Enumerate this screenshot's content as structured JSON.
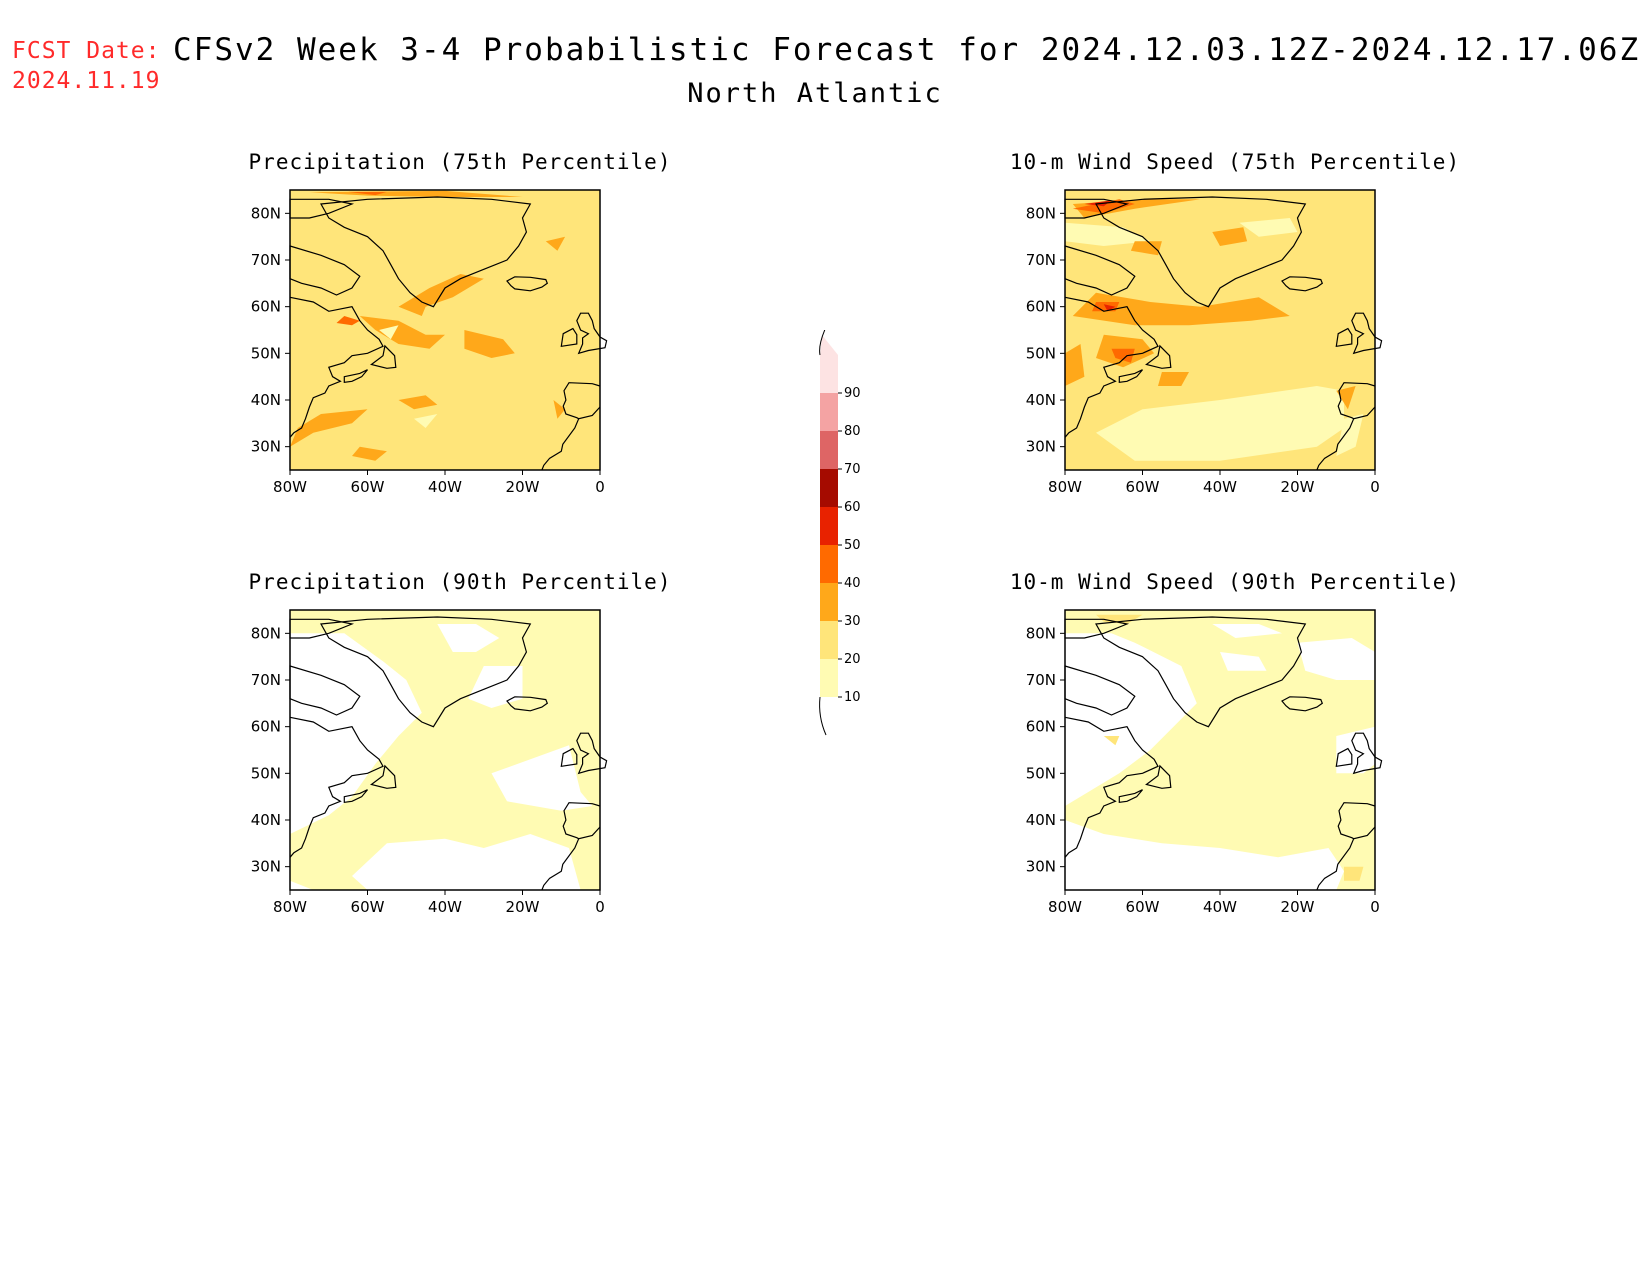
{
  "header": {
    "fcst_label": "FCST Date:",
    "fcst_date": "2024.11.19",
    "title": "CFSv2 Week 3-4 Probabilistic Forecast for 2024.12.03.12Z-2024.12.17.06Z",
    "region": "North Atlantic"
  },
  "axes": {
    "lat_ticks": [
      "80N",
      "70N",
      "60N",
      "50N",
      "40N",
      "30N"
    ],
    "lon_ticks": [
      "80W",
      "60W",
      "40W",
      "20W",
      "0"
    ]
  },
  "colorbar": {
    "levels": [
      "10",
      "20",
      "30",
      "40",
      "50",
      "60",
      "70",
      "80",
      "90"
    ],
    "colors": [
      "#fffbb3",
      "#ffe57a",
      "#ffa81a",
      "#ff6a00",
      "#e82200",
      "#a50b00",
      "#de6565",
      "#f4a3a3",
      "#fde3e3"
    ]
  },
  "panels": [
    {
      "title": "Precipitation (75th Percentile)",
      "base_level": "20-30",
      "variant": "precip75"
    },
    {
      "title": "10-m Wind Speed (75th Percentile)",
      "base_level": "20-30",
      "variant": "wind75"
    },
    {
      "title": "Precipitation (90th Percentile)",
      "base_level": "10-20",
      "variant": "precip90"
    },
    {
      "title": "10-m Wind Speed (90th Percentile)",
      "base_level": "10-20",
      "variant": "wind90"
    }
  ]
}
